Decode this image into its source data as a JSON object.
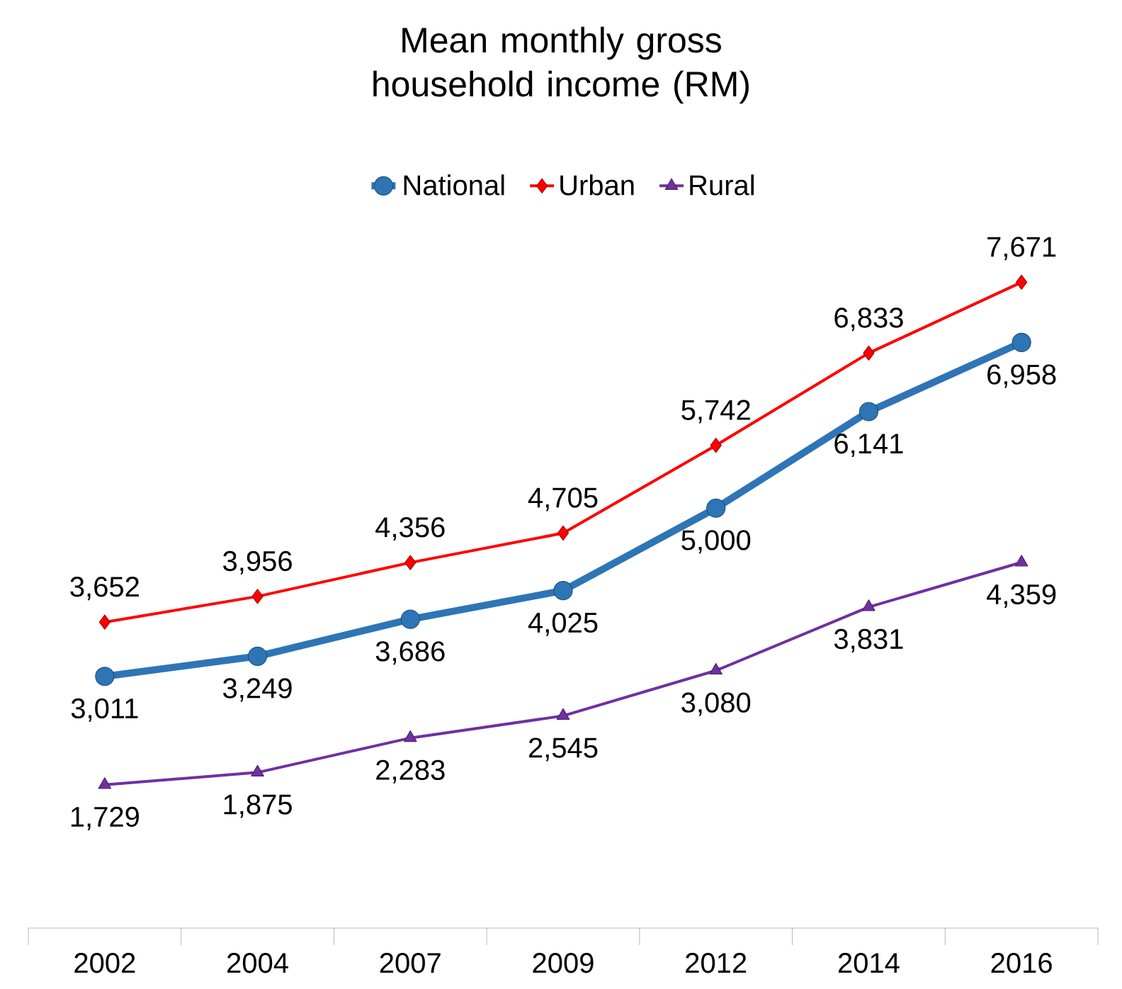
{
  "chart_data": {
    "type": "line",
    "title": "Mean monthly gross household income (RM)",
    "categories": [
      "2002",
      "2004",
      "2007",
      "2009",
      "2012",
      "2014",
      "2016"
    ],
    "series": [
      {
        "name": "National",
        "color": "#2e75b6",
        "marker": "circle",
        "values": [
          3011,
          3249,
          3686,
          4025,
          5000,
          6141,
          6958
        ],
        "value_labels": [
          "3,011",
          "3,249",
          "3,686",
          "4,025",
          "5,000",
          "6,141",
          "6,958"
        ]
      },
      {
        "name": "Urban",
        "color": "#ff0000",
        "marker": "diamond",
        "values": [
          3652,
          3956,
          4356,
          4705,
          5742,
          6833,
          7671
        ],
        "value_labels": [
          "3,652",
          "3,956",
          "4,356",
          "4,705",
          "5,742",
          "6,833",
          "7,671"
        ]
      },
      {
        "name": "Rural",
        "color": "#7030a0",
        "marker": "triangle",
        "values": [
          1729,
          1875,
          2283,
          2545,
          3080,
          3831,
          4359
        ],
        "value_labels": [
          "1,729",
          "1,875",
          "2,283",
          "2,545",
          "3,080",
          "3,831",
          "4,359"
        ]
      }
    ],
    "legend": "top",
    "grid": false
  }
}
